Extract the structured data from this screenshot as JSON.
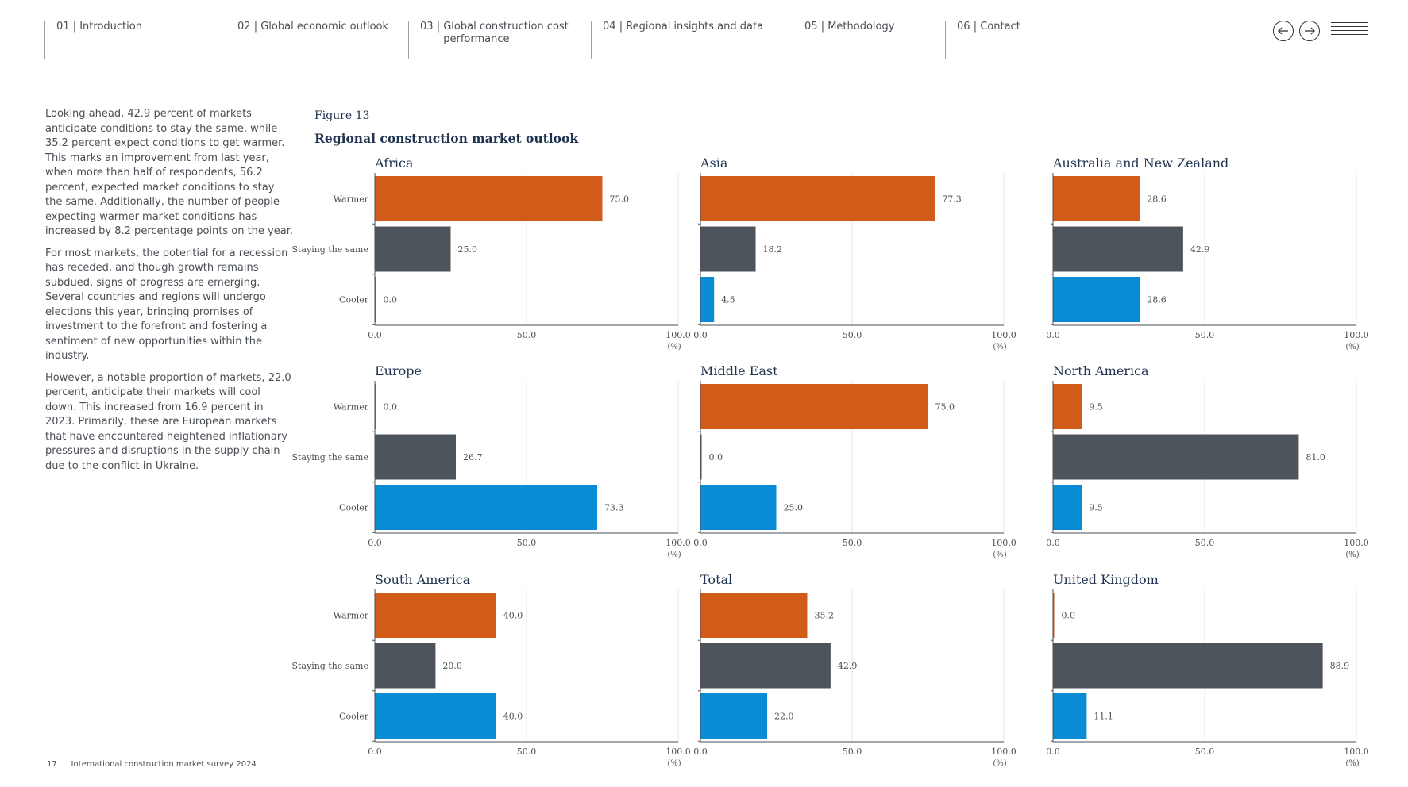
{
  "nav": {
    "items": [
      {
        "num": "01",
        "label": "Introduction"
      },
      {
        "num": "02",
        "label": "Global economic outlook"
      },
      {
        "num": "03",
        "label": "Global construction cost performance"
      },
      {
        "num": "04",
        "label": "Regional insights and data"
      },
      {
        "num": "05",
        "label": "Methodology"
      },
      {
        "num": "06",
        "label": "Contact"
      }
    ],
    "separator": "|",
    "prev_icon": "arrow-left-icon",
    "next_icon": "arrow-right-icon",
    "menu_icon": "hamburger-menu-icon"
  },
  "body": {
    "paragraphs": [
      "Looking ahead, 42.9 percent of markets anticipate conditions to stay the same, while 35.2 percent expect conditions to get warmer. This marks an improvement from last year, when more than half of respondents, 56.2 percent, expected market conditions to stay the same. Additionally, the number of people expecting warmer market conditions has increased by 8.2 percentage points on the year.",
      "For most markets, the potential for a recession has receded, and though growth remains subdued, signs of progress are emerging. Several countries and regions will undergo elections this year, bringing promises of investment to the forefront and fostering a sentiment of new opportunities within the industry.",
      "However, a notable proportion of markets, 22.0 percent, anticipate their markets will cool down. This increased from 16.9 percent in 2023. Primarily, these are European markets that have encountered heightened inflationary pressures and disruptions in the supply chain due to the conflict in Ukraine."
    ]
  },
  "figure": {
    "label": "Figure 13",
    "title": "Regional construction market outlook"
  },
  "chart_data": {
    "type": "bar",
    "orientation": "horizontal",
    "categories": [
      "Warmer",
      "Staying the same",
      "Cooler"
    ],
    "colors": {
      "Warmer": "#d35b1a",
      "Staying the same": "#4d545b",
      "Cooler": "#0a8bd6"
    },
    "xlim": [
      0,
      100
    ],
    "xticks": [
      "0.0",
      "50.0",
      "100.0"
    ],
    "unit_label": "(%)",
    "grid": "vertical",
    "panels": [
      {
        "title": "Africa",
        "values": [
          75.0,
          25.0,
          0.0
        ]
      },
      {
        "title": "Asia",
        "values": [
          77.3,
          18.2,
          4.5
        ]
      },
      {
        "title": "Australia and New Zealand",
        "values": [
          28.6,
          42.9,
          28.6
        ]
      },
      {
        "title": "Europe",
        "values": [
          0.0,
          26.7,
          73.3
        ]
      },
      {
        "title": "Middle East",
        "values": [
          75.0,
          0.0,
          25.0
        ]
      },
      {
        "title": "North America",
        "values": [
          9.5,
          81.0,
          9.5
        ]
      },
      {
        "title": "South America",
        "values": [
          40.0,
          20.0,
          40.0
        ]
      },
      {
        "title": "Total",
        "values": [
          35.2,
          42.9,
          22.0
        ]
      },
      {
        "title": "United Kingdom",
        "values": [
          0.0,
          88.9,
          11.1
        ]
      }
    ]
  },
  "footer": {
    "page": "17",
    "separator": "|",
    "text": "International construction market survey 2024"
  }
}
